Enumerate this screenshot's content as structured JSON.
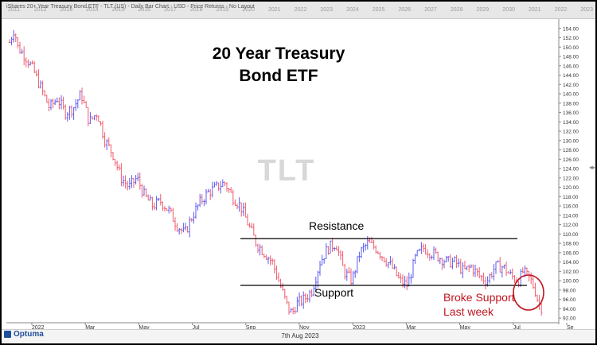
{
  "header": {
    "title": "iShares 20+ Year Treasury Bond ETF - TLT (US) - Daily Bar Chart - USD - Price Returns - No Layout",
    "timeline_years": [
      "2011",
      "2012",
      "2013",
      "2014",
      "2015",
      "2016",
      "2017",
      "2018",
      "2019",
      "2020",
      "2021",
      "2022",
      "2023",
      "2024",
      "2025",
      "2026",
      "2027",
      "2028",
      "2029",
      "2030",
      "2021",
      "2022",
      "2023"
    ]
  },
  "watermark": "TLT",
  "footer": {
    "logo": "Optuma",
    "date": "7th Aug 2023"
  },
  "colors": {
    "up_bar": "#5b5bf0",
    "down_bar": "#f05b6e",
    "annotation_red": "#c0151f",
    "line": "#000000"
  },
  "chart_data": {
    "type": "bar",
    "subtype": "ohlc",
    "title": "20 Year Treasury Bond ETF",
    "x_tick_labels": [
      "2022",
      "Mar",
      "May",
      "Jul",
      "Sep",
      "Nov",
      "2023",
      "Mar",
      "May",
      "Jul",
      "Se"
    ],
    "ylim": [
      91,
      156
    ],
    "y_ticks": [
      92,
      94,
      96,
      98,
      100,
      102,
      104,
      106,
      108,
      110,
      112,
      114,
      116,
      118,
      120,
      122,
      124,
      126,
      128,
      130,
      132,
      134,
      136,
      138,
      140,
      142,
      144,
      146,
      148,
      150,
      152,
      154
    ],
    "path": [
      [
        0,
        151
      ],
      [
        6,
        154
      ],
      [
        10,
        150
      ],
      [
        20,
        148
      ],
      [
        30,
        145
      ],
      [
        40,
        141
      ],
      [
        50,
        137
      ],
      [
        60,
        139
      ],
      [
        70,
        136
      ],
      [
        80,
        137
      ],
      [
        90,
        140
      ],
      [
        100,
        134
      ],
      [
        110,
        136
      ],
      [
        120,
        130
      ],
      [
        130,
        127
      ],
      [
        140,
        122
      ],
      [
        150,
        120
      ],
      [
        160,
        122
      ],
      [
        170,
        118
      ],
      [
        180,
        116
      ],
      [
        190,
        117
      ],
      [
        200,
        115
      ],
      [
        210,
        112
      ],
      [
        220,
        110
      ],
      [
        230,
        114
      ],
      [
        240,
        117
      ],
      [
        250,
        119
      ],
      [
        260,
        120
      ],
      [
        270,
        121
      ],
      [
        280,
        118
      ],
      [
        290,
        116
      ],
      [
        300,
        112
      ],
      [
        310,
        108
      ],
      [
        320,
        106
      ],
      [
        330,
        104
      ],
      [
        340,
        99
      ],
      [
        350,
        94
      ],
      [
        355,
        93
      ],
      [
        360,
        95
      ],
      [
        370,
        96
      ],
      [
        380,
        98
      ],
      [
        390,
        104
      ],
      [
        400,
        107
      ],
      [
        410,
        108
      ],
      [
        420,
        102
      ],
      [
        430,
        100
      ],
      [
        440,
        106
      ],
      [
        450,
        108
      ],
      [
        460,
        107
      ],
      [
        470,
        105
      ],
      [
        480,
        103
      ],
      [
        490,
        100
      ],
      [
        500,
        99
      ],
      [
        510,
        105
      ],
      [
        520,
        107
      ],
      [
        530,
        106
      ],
      [
        540,
        105
      ],
      [
        550,
        104
      ],
      [
        560,
        104
      ],
      [
        570,
        102
      ],
      [
        580,
        103
      ],
      [
        590,
        101
      ],
      [
        600,
        100
      ],
      [
        610,
        103
      ],
      [
        620,
        103
      ],
      [
        630,
        101
      ],
      [
        640,
        100
      ],
      [
        645,
        102
      ],
      [
        650,
        101
      ],
      [
        655,
        100
      ],
      [
        660,
        98
      ],
      [
        665,
        95
      ],
      [
        670,
        94
      ]
    ],
    "annotations": {
      "resistance_label": "Resistance",
      "resistance_level": 109,
      "support_label": "Support",
      "support_level": 99,
      "broke_support_line1": "Broke Support",
      "broke_support_line2": "Last week"
    }
  }
}
